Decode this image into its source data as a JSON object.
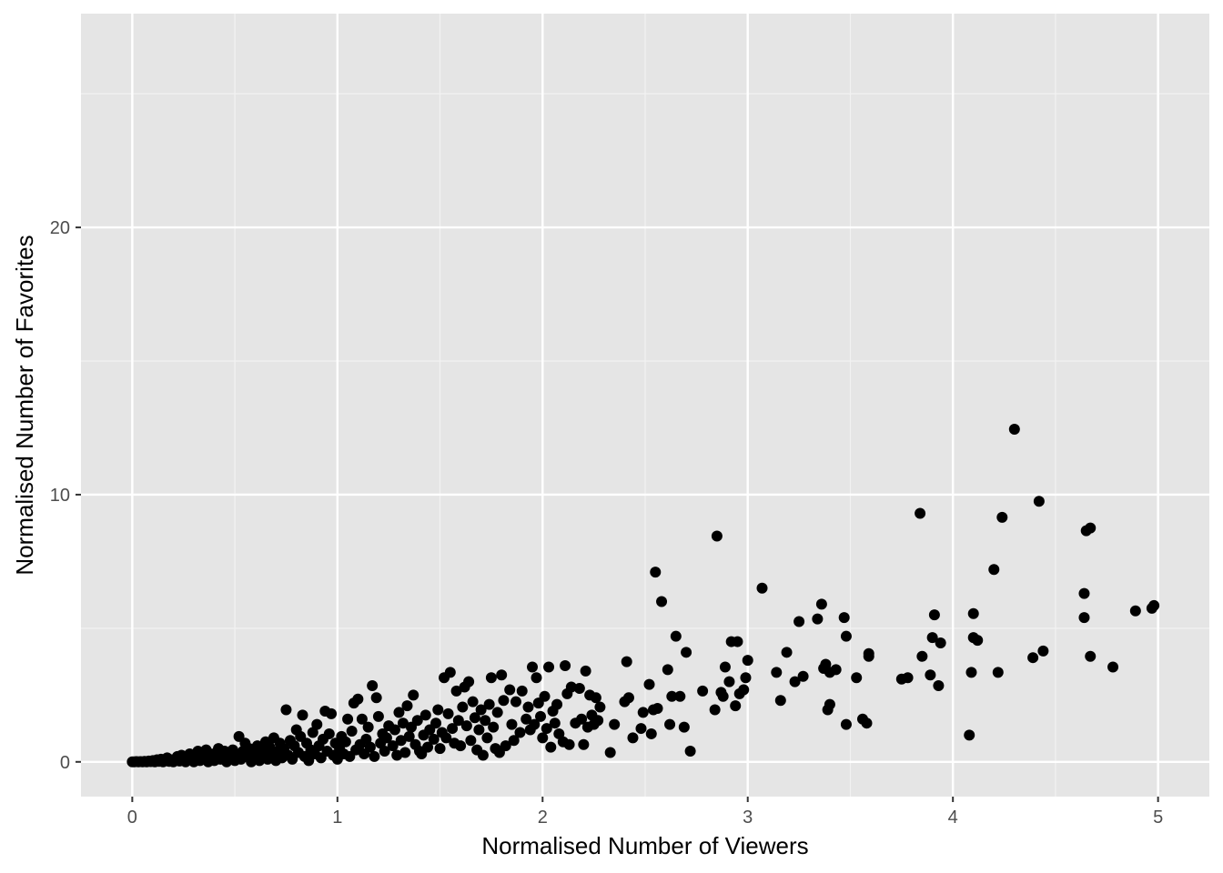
{
  "colors": {
    "panel_background": "#e5e5e5",
    "grid_major": "#ffffff",
    "grid_minor": "#f2f2f2",
    "point": "#000000",
    "tick_text": "#4d4d4d",
    "tick_mark": "#333333"
  },
  "chart_data": {
    "type": "scatter",
    "title": "",
    "xlabel": "Normalised Number of Viewers",
    "ylabel": "Normalised Number of Favorites",
    "xlim": [
      -0.25,
      5.25
    ],
    "ylim": [
      -1.3,
      28.0
    ],
    "x_ticks": [
      0,
      1,
      2,
      3,
      4,
      5
    ],
    "x_tick_labels": [
      "0",
      "1",
      "2",
      "3",
      "4",
      "5"
    ],
    "y_ticks": [
      0,
      10,
      20
    ],
    "y_tick_labels": [
      "0",
      "10",
      "20"
    ],
    "grid": true,
    "legend": "none",
    "series": [
      {
        "values": [
          [
            0.0,
            0.0
          ],
          [
            0.01,
            0.0
          ],
          [
            0.02,
            0.01
          ],
          [
            0.03,
            0.0
          ],
          [
            0.04,
            0.01
          ],
          [
            0.05,
            0.0
          ],
          [
            0.06,
            0.02
          ],
          [
            0.07,
            0.0
          ],
          [
            0.08,
            0.03
          ],
          [
            0.09,
            0.01
          ],
          [
            0.1,
            0.05
          ],
          [
            0.11,
            0.0
          ],
          [
            0.12,
            0.08
          ],
          [
            0.13,
            0.02
          ],
          [
            0.14,
            0.1
          ],
          [
            0.15,
            0.0
          ],
          [
            0.16,
            0.05
          ],
          [
            0.17,
            0.15
          ],
          [
            0.18,
            0.02
          ],
          [
            0.19,
            0.08
          ],
          [
            0.2,
            0.0
          ],
          [
            0.21,
            0.1
          ],
          [
            0.22,
            0.2
          ],
          [
            0.23,
            0.03
          ],
          [
            0.24,
            0.25
          ],
          [
            0.25,
            0.05
          ],
          [
            0.26,
            0.0
          ],
          [
            0.27,
            0.15
          ],
          [
            0.28,
            0.3
          ],
          [
            0.29,
            0.1
          ],
          [
            0.3,
            0.0
          ],
          [
            0.31,
            0.2
          ],
          [
            0.32,
            0.4
          ],
          [
            0.33,
            0.05
          ],
          [
            0.34,
            0.25
          ],
          [
            0.35,
            0.1
          ],
          [
            0.36,
            0.45
          ],
          [
            0.37,
            0.0
          ],
          [
            0.38,
            0.3
          ],
          [
            0.39,
            0.15
          ],
          [
            0.4,
            0.05
          ],
          [
            0.41,
            0.35
          ],
          [
            0.42,
            0.5
          ],
          [
            0.43,
            0.1
          ],
          [
            0.44,
            0.2
          ],
          [
            0.45,
            0.4
          ],
          [
            0.46,
            0.0
          ],
          [
            0.47,
            0.3
          ],
          [
            0.48,
            0.15
          ],
          [
            0.49,
            0.45
          ],
          [
            0.5,
            0.05
          ],
          [
            0.51,
            0.25
          ],
          [
            0.52,
            0.95
          ],
          [
            0.53,
            0.1
          ],
          [
            0.54,
            0.4
          ],
          [
            0.55,
            0.7
          ],
          [
            0.56,
            0.2
          ],
          [
            0.57,
            0.5
          ],
          [
            0.58,
            0.0
          ],
          [
            0.59,
            0.35
          ],
          [
            0.6,
            0.15
          ],
          [
            0.61,
            0.6
          ],
          [
            0.62,
            0.05
          ],
          [
            0.63,
            0.45
          ],
          [
            0.64,
            0.25
          ],
          [
            0.65,
            0.75
          ],
          [
            0.66,
            0.1
          ],
          [
            0.67,
            0.55
          ],
          [
            0.68,
            0.3
          ],
          [
            0.69,
            0.9
          ],
          [
            0.7,
            0.05
          ],
          [
            0.71,
            0.4
          ],
          [
            0.72,
            0.7
          ],
          [
            0.73,
            0.15
          ],
          [
            0.74,
            0.5
          ],
          [
            0.75,
            1.95
          ],
          [
            0.76,
            0.25
          ],
          [
            0.77,
            0.8
          ],
          [
            0.78,
            0.1
          ],
          [
            0.79,
            0.6
          ],
          [
            0.8,
            1.2
          ],
          [
            0.81,
            0.35
          ],
          [
            0.82,
            0.95
          ],
          [
            0.83,
            1.75
          ],
          [
            0.84,
            0.2
          ],
          [
            0.85,
            0.7
          ],
          [
            0.86,
            0.05
          ],
          [
            0.87,
            0.45
          ],
          [
            0.88,
            1.1
          ],
          [
            0.89,
            0.3
          ],
          [
            0.9,
            1.4
          ],
          [
            0.91,
            0.6
          ],
          [
            0.92,
            0.15
          ],
          [
            0.93,
            0.85
          ],
          [
            0.94,
            1.9
          ],
          [
            0.95,
            0.4
          ],
          [
            0.96,
            1.05
          ],
          [
            0.97,
            1.8
          ],
          [
            0.98,
            0.25
          ],
          [
            0.99,
            0.7
          ],
          [
            1.0,
            0.1
          ],
          [
            1.01,
            0.5
          ],
          [
            1.02,
            0.95
          ],
          [
            1.03,
            0.3
          ],
          [
            1.04,
            0.75
          ],
          [
            1.05,
            1.6
          ],
          [
            1.06,
            0.2
          ],
          [
            1.07,
            1.15
          ],
          [
            1.08,
            2.2
          ],
          [
            1.09,
            0.45
          ],
          [
            1.1,
            2.35
          ],
          [
            1.11,
            0.65
          ],
          [
            1.12,
            1.6
          ],
          [
            1.13,
            0.3
          ],
          [
            1.14,
            0.85
          ],
          [
            1.15,
            1.3
          ],
          [
            1.16,
            0.55
          ],
          [
            1.17,
            2.85
          ],
          [
            1.18,
            0.2
          ],
          [
            1.19,
            2.4
          ],
          [
            1.2,
            1.7
          ],
          [
            1.21,
            0.7
          ],
          [
            1.22,
            1.05
          ],
          [
            1.23,
            0.4
          ],
          [
            1.24,
            0.9
          ],
          [
            1.25,
            1.35
          ],
          [
            1.27,
            0.6
          ],
          [
            1.28,
            1.2
          ],
          [
            1.29,
            0.25
          ],
          [
            1.3,
            1.85
          ],
          [
            1.31,
            0.8
          ],
          [
            1.32,
            1.45
          ],
          [
            1.33,
            0.35
          ],
          [
            1.34,
            2.1
          ],
          [
            1.35,
            0.95
          ],
          [
            1.36,
            1.3
          ],
          [
            1.37,
            2.5
          ],
          [
            1.38,
            0.65
          ],
          [
            1.39,
            1.55
          ],
          [
            1.4,
            0.4
          ],
          [
            1.41,
            0.3
          ],
          [
            1.42,
            1.0
          ],
          [
            1.43,
            1.75
          ],
          [
            1.44,
            0.55
          ],
          [
            1.45,
            1.2
          ],
          [
            1.47,
            0.85
          ],
          [
            1.48,
            1.45
          ],
          [
            1.49,
            1.95
          ],
          [
            1.5,
            0.5
          ],
          [
            1.51,
            1.1
          ],
          [
            1.52,
            3.15
          ],
          [
            1.53,
            0.9
          ],
          [
            1.54,
            1.8
          ],
          [
            1.55,
            3.35
          ],
          [
            1.56,
            1.25
          ],
          [
            1.57,
            0.7
          ],
          [
            1.58,
            2.65
          ],
          [
            1.59,
            1.55
          ],
          [
            1.6,
            0.6
          ],
          [
            1.61,
            2.05
          ],
          [
            1.62,
            2.8
          ],
          [
            1.63,
            1.35
          ],
          [
            1.64,
            3.0
          ],
          [
            1.65,
            0.8
          ],
          [
            1.66,
            2.25
          ],
          [
            1.67,
            1.65
          ],
          [
            1.68,
            0.45
          ],
          [
            1.69,
            1.2
          ],
          [
            1.7,
            1.95
          ],
          [
            1.71,
            0.25
          ],
          [
            1.72,
            1.55
          ],
          [
            1.73,
            0.9
          ],
          [
            1.74,
            2.15
          ],
          [
            1.75,
            3.15
          ],
          [
            1.76,
            1.3
          ],
          [
            1.77,
            0.5
          ],
          [
            1.78,
            1.85
          ],
          [
            1.79,
            0.35
          ],
          [
            1.8,
            3.25
          ],
          [
            1.81,
            2.3
          ],
          [
            1.82,
            0.6
          ],
          [
            1.84,
            2.7
          ],
          [
            1.85,
            1.4
          ],
          [
            1.86,
            0.8
          ],
          [
            1.87,
            2.25
          ],
          [
            1.89,
            1.1
          ],
          [
            1.9,
            2.65
          ],
          [
            1.92,
            1.6
          ],
          [
            1.93,
            2.05
          ],
          [
            1.94,
            1.2
          ],
          [
            1.95,
            3.55
          ],
          [
            1.96,
            1.4
          ],
          [
            1.97,
            3.15
          ],
          [
            1.98,
            2.2
          ],
          [
            1.99,
            1.7
          ],
          [
            2.0,
            0.9
          ],
          [
            2.01,
            2.45
          ],
          [
            2.02,
            1.25
          ],
          [
            2.03,
            3.55
          ],
          [
            2.04,
            0.55
          ],
          [
            2.05,
            1.9
          ],
          [
            2.06,
            1.45
          ],
          [
            2.07,
            2.15
          ],
          [
            2.08,
            1.05
          ],
          [
            2.1,
            0.75
          ],
          [
            2.11,
            3.6
          ],
          [
            2.12,
            2.55
          ],
          [
            2.13,
            0.65
          ],
          [
            2.14,
            2.8
          ],
          [
            2.16,
            1.45
          ],
          [
            2.18,
            2.75
          ],
          [
            2.19,
            1.6
          ],
          [
            2.2,
            0.65
          ],
          [
            2.21,
            3.4
          ],
          [
            2.22,
            1.3
          ],
          [
            2.23,
            2.5
          ],
          [
            2.24,
            1.75
          ],
          [
            2.25,
            1.4
          ],
          [
            2.26,
            2.4
          ],
          [
            2.27,
            1.55
          ],
          [
            2.28,
            2.05
          ],
          [
            2.33,
            0.35
          ],
          [
            2.35,
            1.4
          ],
          [
            2.4,
            2.25
          ],
          [
            2.41,
            3.75
          ],
          [
            2.42,
            2.4
          ],
          [
            2.44,
            0.9
          ],
          [
            2.48,
            1.25
          ],
          [
            2.49,
            1.85
          ],
          [
            2.52,
            2.9
          ],
          [
            2.53,
            1.05
          ],
          [
            2.54,
            1.95
          ],
          [
            2.55,
            7.1
          ],
          [
            2.56,
            2.0
          ],
          [
            2.58,
            6.0
          ],
          [
            2.61,
            3.45
          ],
          [
            2.62,
            1.4
          ],
          [
            2.63,
            2.45
          ],
          [
            2.65,
            4.7
          ],
          [
            2.67,
            2.45
          ],
          [
            2.69,
            1.3
          ],
          [
            2.7,
            4.1
          ],
          [
            2.72,
            0.4
          ],
          [
            2.78,
            2.65
          ],
          [
            2.84,
            1.95
          ],
          [
            2.85,
            8.45
          ],
          [
            2.87,
            2.6
          ],
          [
            2.88,
            2.45
          ],
          [
            2.89,
            3.55
          ],
          [
            2.91,
            3.0
          ],
          [
            2.92,
            4.5
          ],
          [
            2.94,
            2.1
          ],
          [
            2.95,
            4.5
          ],
          [
            2.96,
            2.55
          ],
          [
            2.98,
            2.7
          ],
          [
            2.99,
            3.15
          ],
          [
            3.0,
            3.8
          ],
          [
            3.07,
            6.5
          ],
          [
            3.14,
            3.35
          ],
          [
            3.16,
            2.3
          ],
          [
            3.19,
            4.1
          ],
          [
            3.23,
            3.0
          ],
          [
            3.25,
            5.25
          ],
          [
            3.27,
            3.2
          ],
          [
            3.34,
            5.35
          ],
          [
            3.36,
            5.9
          ],
          [
            3.37,
            3.5
          ],
          [
            3.38,
            3.65
          ],
          [
            3.39,
            1.95
          ],
          [
            3.4,
            2.15
          ],
          [
            3.4,
            3.35
          ],
          [
            3.43,
            3.45
          ],
          [
            3.47,
            5.4
          ],
          [
            3.48,
            4.7
          ],
          [
            3.48,
            1.4
          ],
          [
            3.53,
            3.15
          ],
          [
            3.56,
            1.6
          ],
          [
            3.58,
            1.45
          ],
          [
            3.59,
            3.95
          ],
          [
            3.59,
            4.05
          ],
          [
            3.75,
            3.1
          ],
          [
            3.78,
            3.15
          ],
          [
            3.84,
            9.3
          ],
          [
            3.85,
            3.95
          ],
          [
            3.89,
            3.25
          ],
          [
            3.9,
            4.65
          ],
          [
            3.91,
            5.5
          ],
          [
            3.93,
            2.85
          ],
          [
            3.94,
            4.45
          ],
          [
            4.08,
            1.0
          ],
          [
            4.09,
            3.35
          ],
          [
            4.1,
            4.65
          ],
          [
            4.1,
            5.55
          ],
          [
            4.12,
            4.55
          ],
          [
            4.2,
            7.2
          ],
          [
            4.22,
            3.35
          ],
          [
            4.24,
            9.15
          ],
          [
            4.3,
            12.45
          ],
          [
            4.39,
            3.9
          ],
          [
            4.42,
            9.75
          ],
          [
            4.44,
            4.15
          ],
          [
            4.64,
            6.3
          ],
          [
            4.64,
            5.4
          ],
          [
            4.65,
            8.65
          ],
          [
            4.67,
            8.75
          ],
          [
            4.67,
            3.95
          ],
          [
            4.78,
            3.55
          ],
          [
            4.89,
            5.65
          ],
          [
            4.97,
            5.75
          ],
          [
            4.98,
            5.85
          ]
        ]
      }
    ]
  }
}
